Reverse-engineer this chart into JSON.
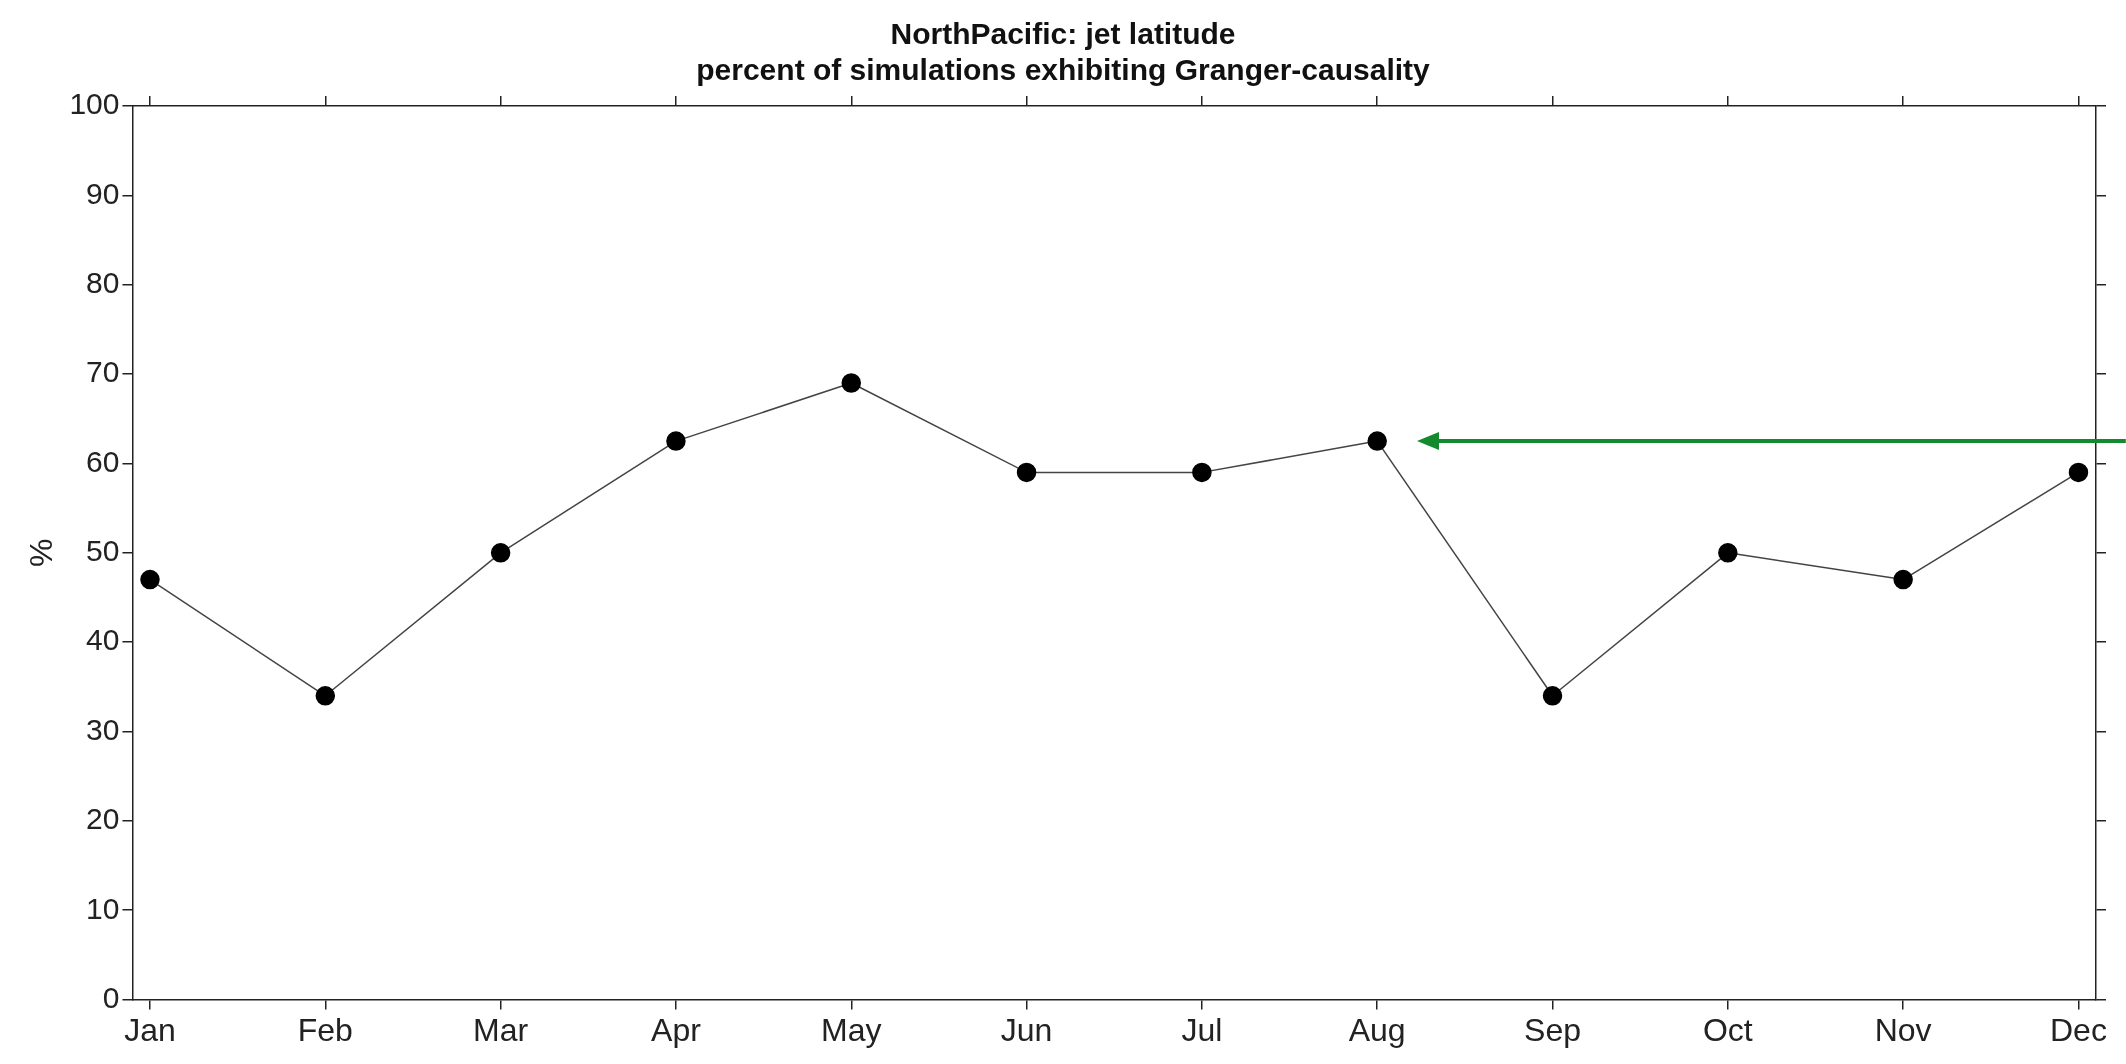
{
  "chart_data": {
    "type": "line",
    "title": "NorthPacific: jet latitude",
    "subtitle": "percent of simulations exhibiting Granger-causality",
    "ylabel": "%",
    "categories": [
      "Jan",
      "Feb",
      "Mar",
      "Apr",
      "May",
      "Jun",
      "Jul",
      "Aug",
      "Sep",
      "Oct",
      "Nov",
      "Dec"
    ],
    "series": [
      {
        "color": "#000000",
        "values": [
          47,
          34,
          50,
          62.5,
          69,
          59,
          59,
          62.5,
          34,
          50,
          47,
          59
        ]
      }
    ],
    "ylim": [
      0,
      100
    ],
    "yticks": [
      0,
      10,
      20,
      30,
      40,
      50,
      60,
      70,
      80,
      90,
      100
    ],
    "grid": false,
    "legend": false,
    "marker": "circle",
    "line_style": "solid"
  }
}
